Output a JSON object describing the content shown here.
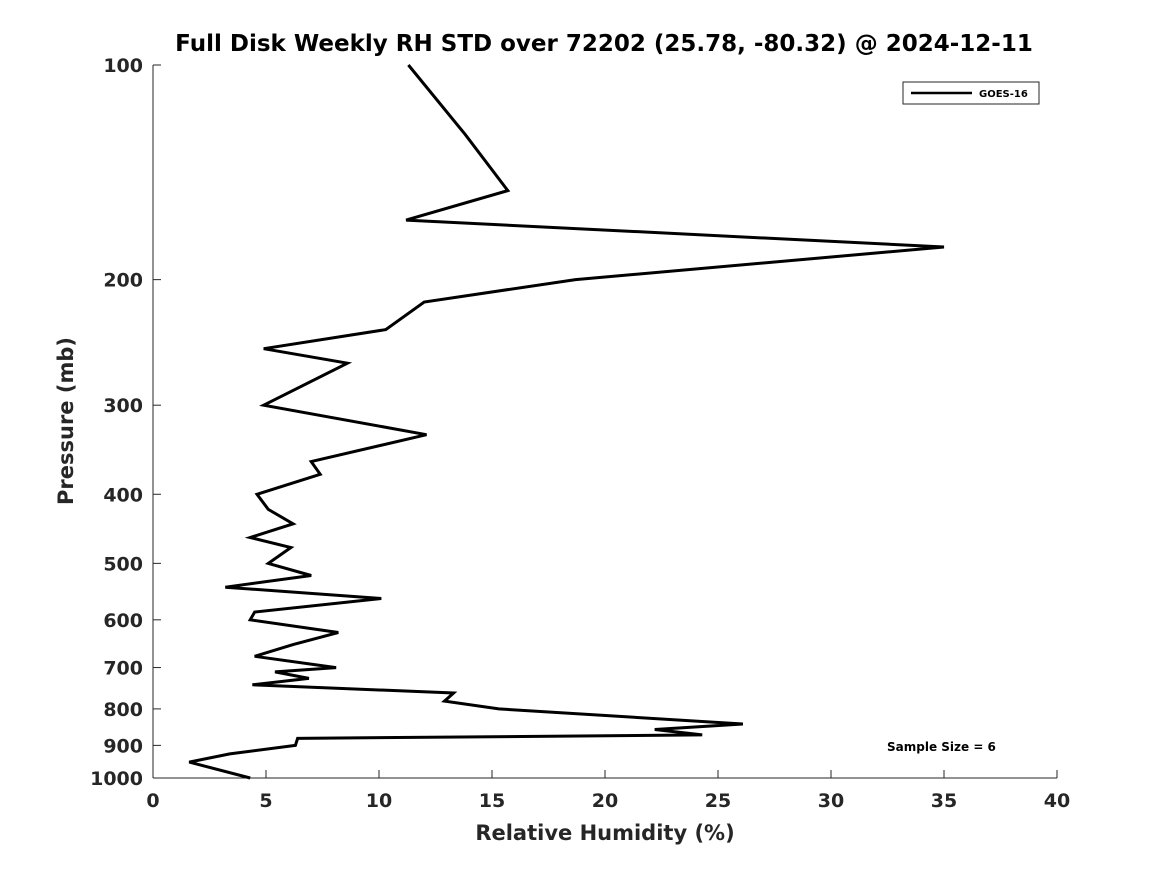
{
  "chart_data": {
    "type": "line",
    "title": "Full Disk Weekly RH STD over 72202 (25.78, -80.32) @ 2024-12-11",
    "xlabel": "Relative Humidity (%)",
    "ylabel": "Pressure (mb)",
    "xlim": [
      0,
      40
    ],
    "ylim": [
      100,
      1000
    ],
    "yscale": "log",
    "y_reversed": true,
    "grid": false,
    "x_ticks": [
      0,
      5,
      10,
      15,
      20,
      25,
      30,
      35,
      40
    ],
    "x_tick_labels": [
      "0",
      "5",
      "10",
      "15",
      "20",
      "25",
      "30",
      "35",
      "40"
    ],
    "y_ticks": [
      100,
      200,
      300,
      400,
      500,
      600,
      700,
      800,
      900,
      1000
    ],
    "y_tick_labels": [
      "100",
      "200",
      "300",
      "400",
      "500",
      "600",
      "700",
      "800",
      "900",
      "1000"
    ],
    "legend": {
      "placement": "top-right",
      "entries": [
        "GOES-16"
      ]
    },
    "annotation": "Sample Size = 6",
    "series": [
      {
        "name": "GOES-16",
        "color": "#000000",
        "points": [
          [
            11.3,
            100
          ],
          [
            13.8,
            125
          ],
          [
            15.7,
            150
          ],
          [
            11.2,
            165
          ],
          [
            35.0,
            180
          ],
          [
            18.7,
            200
          ],
          [
            12.0,
            215
          ],
          [
            10.3,
            235
          ],
          [
            4.9,
            250
          ],
          [
            8.6,
            262
          ],
          [
            4.9,
            300
          ],
          [
            12.1,
            330
          ],
          [
            7.0,
            360
          ],
          [
            7.4,
            375
          ],
          [
            4.6,
            400
          ],
          [
            5.1,
            420
          ],
          [
            6.2,
            440
          ],
          [
            4.3,
            460
          ],
          [
            6.1,
            475
          ],
          [
            5.1,
            500
          ],
          [
            7.0,
            520
          ],
          [
            3.2,
            540
          ],
          [
            10.1,
            560
          ],
          [
            4.5,
            585
          ],
          [
            4.3,
            600
          ],
          [
            8.2,
            625
          ],
          [
            6.2,
            650
          ],
          [
            4.5,
            675
          ],
          [
            8.1,
            700
          ],
          [
            5.4,
            710
          ],
          [
            6.9,
            725
          ],
          [
            4.4,
            740
          ],
          [
            13.3,
            760
          ],
          [
            12.9,
            780
          ],
          [
            15.3,
            800
          ],
          [
            26.1,
            840
          ],
          [
            22.2,
            855
          ],
          [
            24.3,
            870
          ],
          [
            6.4,
            880
          ],
          [
            6.3,
            900
          ],
          [
            3.4,
            925
          ],
          [
            1.6,
            950
          ],
          [
            4.3,
            1000
          ]
        ]
      }
    ]
  }
}
